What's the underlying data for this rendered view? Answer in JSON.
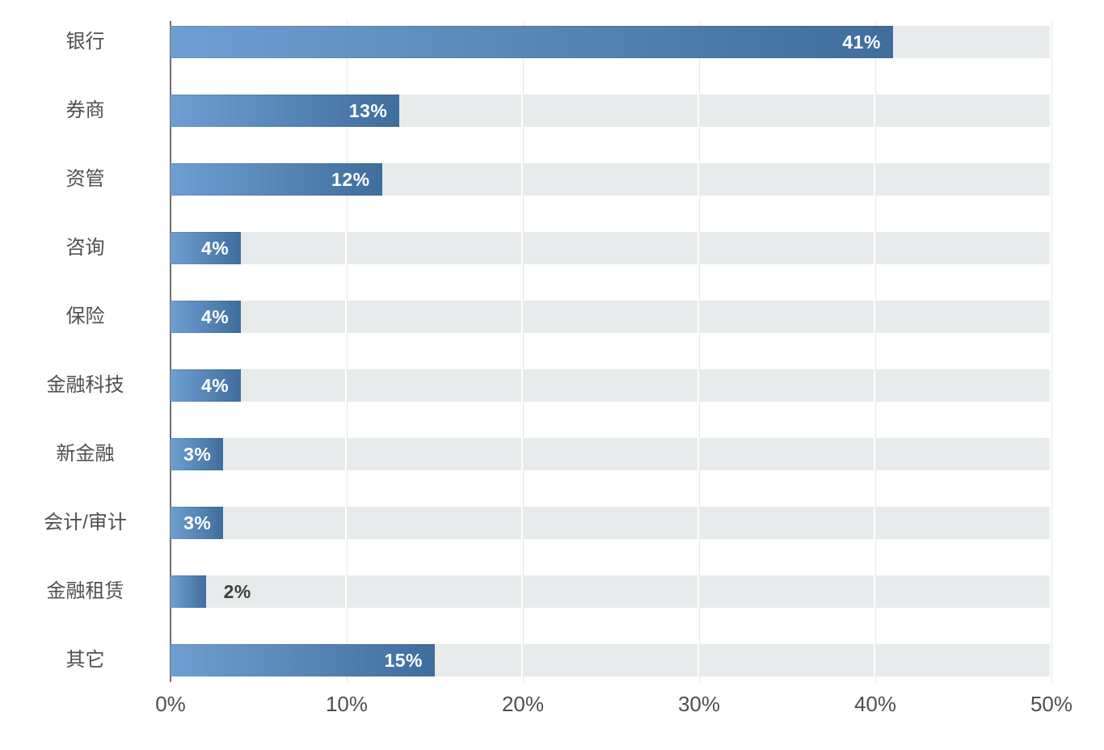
{
  "chart_data": {
    "type": "bar",
    "orientation": "horizontal",
    "title": "",
    "xlabel": "",
    "ylabel": "",
    "categories": [
      "银行",
      "券商",
      "资管",
      "咨询",
      "保险",
      "金融科技",
      "新金融",
      "会计/审计",
      "金融租赁",
      "其它"
    ],
    "values": [
      41,
      13,
      12,
      4,
      4,
      4,
      3,
      3,
      2,
      15
    ],
    "value_labels": [
      "41%",
      "13%",
      "12%",
      "4%",
      "4%",
      "4%",
      "3%",
      "3%",
      "2%",
      "15%"
    ],
    "x_ticks": [
      "0%",
      "10%",
      "20%",
      "30%",
      "40%",
      "50%"
    ],
    "xlim": [
      0,
      50
    ],
    "grid": true,
    "legend": null,
    "label_outside_below": 3,
    "colors": {
      "bar_gradient_start": "#6f9fd2",
      "bar_gradient_end": "#3f6e9d",
      "track": "#e8ebec",
      "gridline": "#e5e8ea",
      "axis_line": "#6f6f6f",
      "label_text": "#4f4f4f",
      "value_in_bar": "#ffffff",
      "value_outside": "#3f3f3f"
    }
  }
}
